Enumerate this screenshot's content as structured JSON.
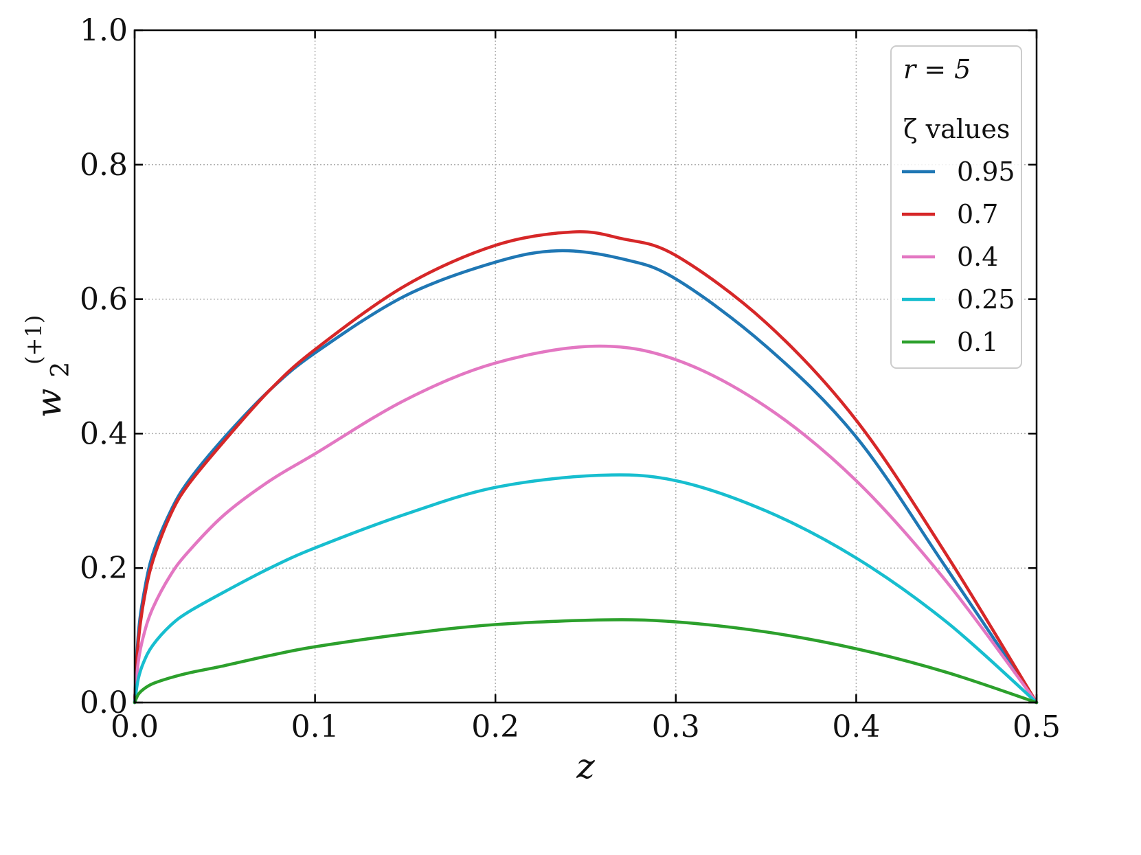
{
  "chart_data": {
    "type": "line",
    "xlabel": "z",
    "ylabel": {
      "base": "w",
      "subscript": "2",
      "superscript": "(+1)"
    },
    "xlim": [
      0.0,
      0.5
    ],
    "ylim": [
      0.0,
      1.0
    ],
    "xticks": [
      "0.0",
      "0.1",
      "0.2",
      "0.3",
      "0.4",
      "0.5"
    ],
    "yticks": [
      "0.0",
      "0.2",
      "0.4",
      "0.6",
      "0.8",
      "1.0"
    ],
    "grid": true,
    "legend": {
      "placement": "top-right",
      "annotation": "r = 5",
      "title": "ζ values"
    },
    "series": [
      {
        "name": "0.95",
        "color": "#1f77b4",
        "x": [
          0.0,
          0.002,
          0.005,
          0.01,
          0.02,
          0.03,
          0.05,
          0.075,
          0.1,
          0.15,
          0.2,
          0.235,
          0.27,
          0.3,
          0.35,
          0.4,
          0.45,
          0.5
        ],
        "y": [
          0.0,
          0.1,
          0.16,
          0.22,
          0.285,
          0.33,
          0.395,
          0.465,
          0.52,
          0.605,
          0.655,
          0.672,
          0.66,
          0.63,
          0.53,
          0.395,
          0.2,
          0.0
        ]
      },
      {
        "name": "0.7",
        "color": "#d62728",
        "x": [
          0.0,
          0.002,
          0.005,
          0.01,
          0.02,
          0.03,
          0.05,
          0.075,
          0.1,
          0.15,
          0.2,
          0.243,
          0.27,
          0.3,
          0.35,
          0.4,
          0.45,
          0.5
        ],
        "y": [
          0.0,
          0.09,
          0.15,
          0.21,
          0.28,
          0.325,
          0.39,
          0.465,
          0.525,
          0.62,
          0.68,
          0.7,
          0.69,
          0.665,
          0.565,
          0.42,
          0.22,
          0.0
        ]
      },
      {
        "name": "0.4",
        "color": "#e377c2",
        "x": [
          0.0,
          0.002,
          0.005,
          0.01,
          0.02,
          0.03,
          0.05,
          0.075,
          0.1,
          0.15,
          0.2,
          0.255,
          0.3,
          0.35,
          0.4,
          0.45,
          0.5
        ],
        "y": [
          0.0,
          0.06,
          0.1,
          0.14,
          0.19,
          0.225,
          0.28,
          0.33,
          0.37,
          0.45,
          0.505,
          0.53,
          0.51,
          0.44,
          0.33,
          0.18,
          0.0
        ]
      },
      {
        "name": "0.25",
        "color": "#17becf",
        "x": [
          0.0,
          0.002,
          0.005,
          0.01,
          0.02,
          0.03,
          0.05,
          0.075,
          0.1,
          0.15,
          0.2,
          0.257,
          0.3,
          0.35,
          0.4,
          0.45,
          0.5
        ],
        "y": [
          0.0,
          0.035,
          0.06,
          0.085,
          0.115,
          0.135,
          0.165,
          0.2,
          0.23,
          0.28,
          0.32,
          0.338,
          0.33,
          0.285,
          0.215,
          0.12,
          0.0
        ]
      },
      {
        "name": "0.1",
        "color": "#2ca02c",
        "x": [
          0.0,
          0.002,
          0.005,
          0.01,
          0.02,
          0.03,
          0.05,
          0.075,
          0.1,
          0.15,
          0.2,
          0.26,
          0.3,
          0.35,
          0.4,
          0.45,
          0.5
        ],
        "y": [
          0.0,
          0.012,
          0.02,
          0.028,
          0.037,
          0.044,
          0.055,
          0.07,
          0.083,
          0.102,
          0.116,
          0.123,
          0.12,
          0.105,
          0.08,
          0.045,
          0.0
        ]
      }
    ]
  }
}
